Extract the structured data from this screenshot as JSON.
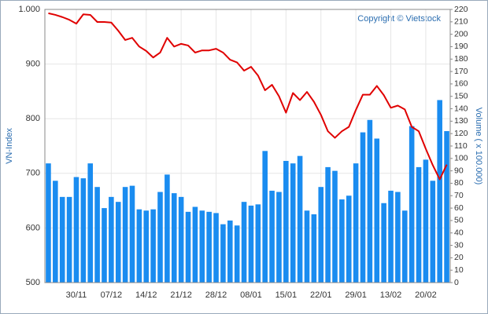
{
  "chart_data": {
    "type": "combo",
    "copyright": "Copyright © Vietstock",
    "y_label": "VN-Index",
    "y2_label": "Volume ( x 100.000)",
    "categories": [
      null,
      null,
      null,
      null,
      "30/11",
      null,
      null,
      null,
      null,
      "07/12",
      null,
      null,
      null,
      null,
      "14/12",
      null,
      null,
      null,
      null,
      "21/12",
      null,
      null,
      null,
      null,
      "28/12",
      null,
      null,
      null,
      null,
      "08/01",
      null,
      null,
      null,
      null,
      "15/01",
      null,
      null,
      null,
      null,
      "22/01",
      null,
      null,
      null,
      null,
      "29/01",
      null,
      null,
      null,
      null,
      "13/02",
      null,
      null,
      null,
      null,
      "20/02",
      null,
      null,
      null
    ],
    "series": [
      {
        "type": "bar",
        "axis": "y2",
        "color": "#1a8cf0",
        "values": [
          96,
          82,
          69,
          69,
          85,
          84,
          96,
          77,
          60,
          69,
          65,
          77,
          78,
          59,
          58,
          59,
          73,
          87,
          72,
          69,
          57,
          61,
          58,
          57,
          56,
          47,
          50,
          46,
          65,
          62,
          63,
          106,
          74,
          73,
          98,
          96,
          102,
          58,
          55,
          77,
          93,
          90,
          67,
          70,
          96,
          121,
          131,
          116,
          64,
          74,
          73,
          58,
          126,
          93,
          99,
          82,
          147,
          122
        ]
      },
      {
        "type": "line",
        "color": "#e00000",
        "values": [
          993,
          990,
          986,
          981,
          974,
          991,
          990,
          977,
          977,
          976,
          961,
          944,
          948,
          932,
          924,
          912,
          921,
          948,
          932,
          937,
          934,
          921,
          925,
          925,
          928,
          921,
          908,
          903,
          888,
          895,
          879,
          852,
          862,
          841,
          811,
          847,
          834,
          849,
          831,
          807,
          777,
          765,
          777,
          785,
          816,
          844,
          844,
          860,
          843,
          820,
          824,
          817,
          785,
          777,
          745,
          715,
          689,
          716
        ]
      }
    ],
    "ylim": [
      500,
      1000
    ],
    "yticks": [
      500,
      600,
      700,
      800,
      900,
      {
        "value": 1000,
        "label": "1.000"
      }
    ],
    "y2lim": [
      0,
      220
    ],
    "y2ticks": [
      0,
      10,
      20,
      30,
      40,
      50,
      60,
      70,
      80,
      90,
      100,
      110,
      120,
      130,
      140,
      150,
      160,
      170,
      180,
      190,
      200,
      210,
      220
    ],
    "grid": true
  }
}
